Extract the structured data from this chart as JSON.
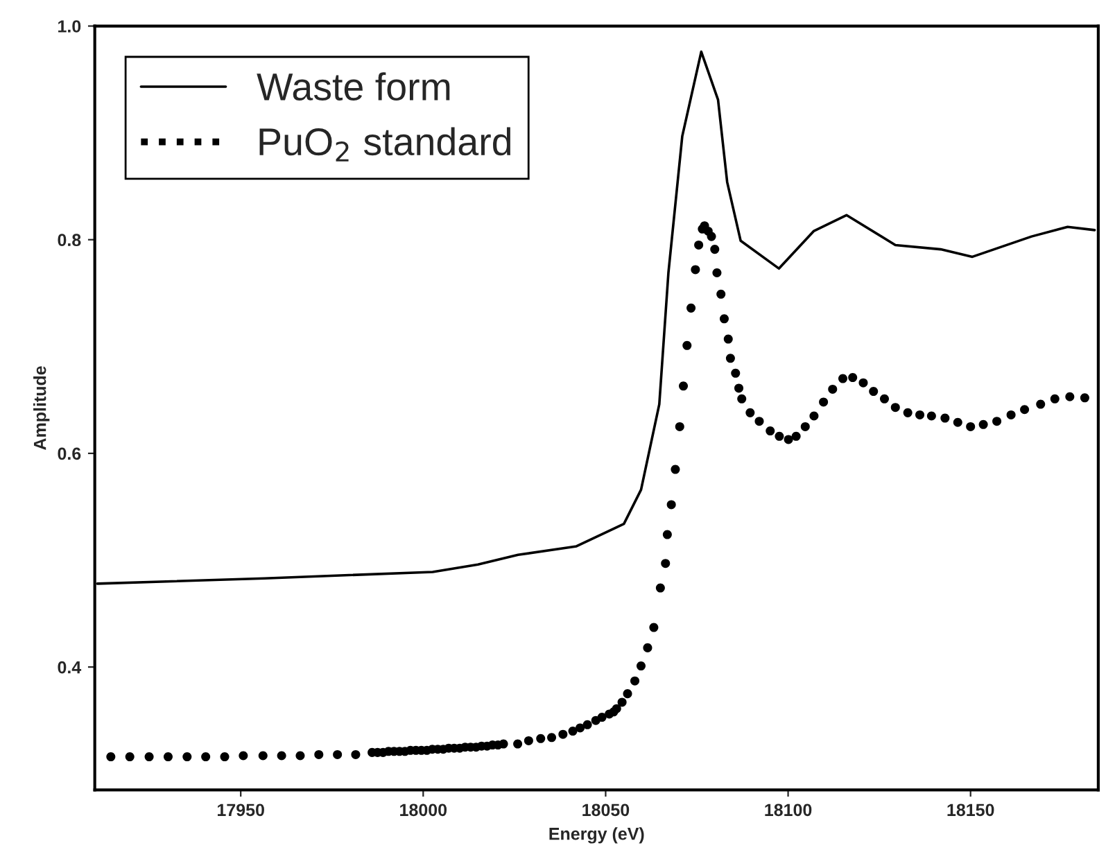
{
  "chart_data": {
    "type": "line",
    "xlabel": "Energy (eV)",
    "ylabel": "Amplitude",
    "xlim": [
      17910,
      18185
    ],
    "xticks": [
      17950,
      18000,
      18050,
      18100,
      18150
    ],
    "ylim": [
      0.285,
      1.0
    ],
    "yticks": [
      0.4,
      0.6,
      0.8,
      {
        "value": 1.0,
        "label": "1.0"
      }
    ],
    "grid": false,
    "legend": "top left",
    "series": [
      {
        "name": "Waste form",
        "color": "#000000",
        "line_style": "solid",
        "marker": "none",
        "x": [
          17910.7,
          17956.5,
          18002.6,
          18015,
          18026,
          18042,
          18055,
          18059.7,
          18064.7,
          18067.2,
          18071,
          18076.2,
          18080.8,
          18083.3,
          18087,
          18097.5,
          18107,
          18116,
          18129.4,
          18141.8,
          18150.5,
          18166.7,
          18176.6,
          18184
        ],
        "values": [
          0.478,
          0.483,
          0.489,
          0.496,
          0.505,
          0.513,
          0.534,
          0.566,
          0.646,
          0.769,
          0.897,
          0.976,
          0.931,
          0.854,
          0.799,
          0.773,
          0.808,
          0.823,
          0.795,
          0.791,
          0.784,
          0.803,
          0.812,
          0.809
        ]
      },
      {
        "name": "PuO$_{2}$ standard",
        "type": "scatter",
        "color": "#000000",
        "marker": "circle",
        "x": [
          17914.4,
          17919.6,
          17924.9,
          17930.1,
          17935.3,
          17940.4,
          17945.6,
          17950.7,
          17956.1,
          17961.2,
          17966.3,
          17971.4,
          17976.5,
          17981.5,
          17986,
          17987.5,
          17989,
          17990.5,
          17992,
          17993.5,
          17995,
          17996.5,
          17998,
          17999.5,
          18001,
          18002.5,
          18004,
          18005.5,
          18007,
          18008.5,
          18010,
          18011.5,
          18013,
          18014.5,
          18016,
          18017.5,
          18019,
          18020.5,
          18022,
          18025.9,
          18028.9,
          18032.2,
          18035.2,
          18038.3,
          18041,
          18043,
          18045,
          18047.3,
          18049,
          18051,
          18052.2,
          18053,
          18054.5,
          18056,
          18058,
          18059.7,
          18061.5,
          18063.2,
          18065,
          18066.4,
          18066.9,
          18068.0,
          18069.1,
          18070.3,
          18071.3,
          18072.3,
          18073.4,
          18074.6,
          18075.5,
          18076.5,
          18077.1,
          18078.1,
          18079.0,
          18079.9,
          18080.5,
          18081.6,
          18082.5,
          18083.6,
          18084.2,
          18085.6,
          18086.5,
          18087.3,
          18089.6,
          18092.1,
          18095.1,
          18097.6,
          18100.1,
          18102.2,
          18104.7,
          18107.1,
          18109.7,
          18112.2,
          18115.0,
          18117.7,
          18120.6,
          18123.4,
          18126.4,
          18129.4,
          18132.8,
          18136.1,
          18139.3,
          18143.0,
          18146.5,
          18150.0,
          18153.5,
          18157.2,
          18161.1,
          18164.8,
          18169.2,
          18173.1,
          18177.2,
          18181.3
        ],
        "values": [
          0.316,
          0.316,
          0.316,
          0.316,
          0.316,
          0.316,
          0.316,
          0.317,
          0.317,
          0.317,
          0.317,
          0.318,
          0.318,
          0.318,
          0.32,
          0.32,
          0.32,
          0.321,
          0.321,
          0.321,
          0.321,
          0.322,
          0.322,
          0.322,
          0.322,
          0.323,
          0.323,
          0.323,
          0.324,
          0.324,
          0.324,
          0.325,
          0.325,
          0.325,
          0.326,
          0.326,
          0.327,
          0.327,
          0.328,
          0.328,
          0.331,
          0.333,
          0.334,
          0.337,
          0.34,
          0.343,
          0.346,
          0.35,
          0.353,
          0.356,
          0.358,
          0.361,
          0.367,
          0.375,
          0.387,
          0.401,
          0.418,
          0.437,
          0.474,
          0.497,
          0.524,
          0.552,
          0.585,
          0.625,
          0.663,
          0.701,
          0.736,
          0.772,
          0.795,
          0.81,
          0.813,
          0.808,
          0.803,
          0.791,
          0.769,
          0.749,
          0.726,
          0.707,
          0.689,
          0.675,
          0.661,
          0.651,
          0.638,
          0.63,
          0.621,
          0.616,
          0.613,
          0.616,
          0.625,
          0.635,
          0.648,
          0.66,
          0.67,
          0.671,
          0.666,
          0.658,
          0.651,
          0.643,
          0.638,
          0.636,
          0.635,
          0.633,
          0.629,
          0.625,
          0.627,
          0.63,
          0.636,
          0.641,
          0.646,
          0.651,
          0.653,
          0.652
        ]
      }
    ]
  }
}
